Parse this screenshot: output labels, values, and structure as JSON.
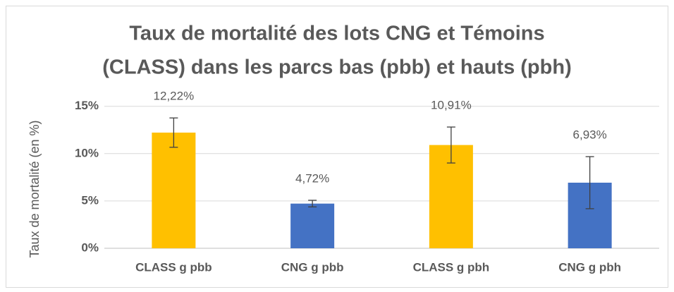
{
  "chart_data": {
    "type": "bar",
    "title": [
      "Taux de mortalité des lots CNG et Témoins",
      "(CLASS) dans les parcs bas (pbb) et hauts (pbh)"
    ],
    "y_label": "Taux de mortalité (en %)",
    "categories": [
      "CLASS g pbb",
      "CNG g pbb",
      "CLASS g pbh",
      "CNG g pbh"
    ],
    "values": [
      12.22,
      4.72,
      10.91,
      6.93
    ],
    "value_labels": [
      "12,22%",
      "4,72%",
      "10,91%",
      "6,93%"
    ],
    "errors": [
      1.55,
      0.35,
      1.9,
      2.75
    ],
    "colors": [
      "#ffc000",
      "#4472c4",
      "#ffc000",
      "#4472c4"
    ],
    "ylim": [
      0,
      15.5
    ],
    "yticks": [
      {
        "value": 0,
        "label": "0%"
      },
      {
        "value": 5,
        "label": "5%"
      },
      {
        "value": 10,
        "label": "10%"
      },
      {
        "value": 15,
        "label": "15%"
      }
    ],
    "grid": true
  }
}
